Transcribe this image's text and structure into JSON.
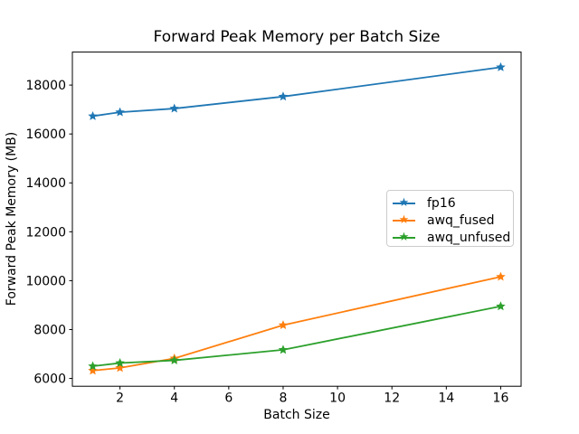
{
  "chart_data": {
    "type": "line",
    "title": "Forward Peak Memory per Batch Size",
    "xlabel": "Batch Size",
    "ylabel": "Forward Peak Memory (MB)",
    "x": [
      1,
      2,
      4,
      8,
      16
    ],
    "series": [
      {
        "name": "fp16",
        "color": "#1f77b4",
        "marker": "star",
        "values": [
          16730,
          16890,
          17040,
          17530,
          18730
        ]
      },
      {
        "name": "awq_fused",
        "color": "#ff7f0e",
        "marker": "star",
        "values": [
          6320,
          6430,
          6820,
          8180,
          10160
        ]
      },
      {
        "name": "awq_unfused",
        "color": "#2ca02c",
        "marker": "star",
        "values": [
          6500,
          6630,
          6740,
          7170,
          8950
        ]
      }
    ],
    "xticks": [
      2,
      4,
      6,
      8,
      10,
      12,
      14,
      16
    ],
    "yticks": [
      6000,
      8000,
      10000,
      12000,
      14000,
      16000,
      18000
    ],
    "xlim": [
      0.25,
      16.75
    ],
    "ylim": [
      5680,
      19350
    ],
    "grid": false,
    "legend_position": "center right",
    "axis_color": "#000000",
    "background": "#ffffff"
  }
}
